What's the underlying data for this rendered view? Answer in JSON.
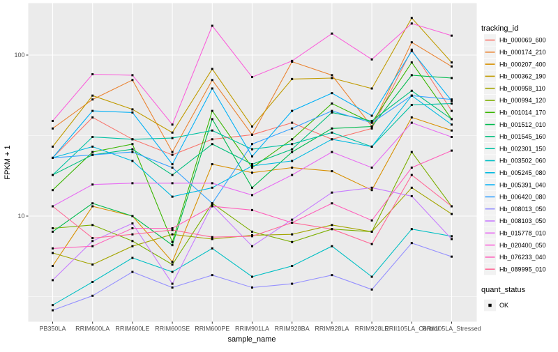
{
  "chart_data": {
    "type": "line",
    "title": "",
    "xlabel": "sample_name",
    "ylabel": "FPKM + 1",
    "y_scale": "log10",
    "ylim": [
      2.2,
      210
    ],
    "grid": true,
    "panel_bg": "#EBEBEB",
    "grid_color": "#FFFFFF",
    "axis_text_color": "#4D4D4D",
    "point_marker": {
      "shape": "square",
      "color": "#000000"
    },
    "yticks": [
      {
        "value": 10,
        "label": "10"
      },
      {
        "value": 100,
        "label": "100"
      }
    ],
    "y_minor": [
      3.162,
      31.62
    ],
    "categories": [
      "PB350LA",
      "RRIM600LA",
      "RRIM600LE",
      "RRIM600SE",
      "RRIM600PE",
      "RRIM901LA",
      "RRIM928BA",
      "RRIM928LA",
      "RRIM928LE",
      "RRII105LA_Control",
      "RRII105LA_Stressed"
    ],
    "legend": {
      "series_title": "tracking_id",
      "status_title": "quant_status",
      "status_items": [
        {
          "label": "OK",
          "marker": "black-square"
        }
      ],
      "key_bg": "#F2F2F2",
      "position": "right"
    },
    "series": [
      {
        "name": "Hb_000069_600",
        "color": "#F8766D",
        "quant_status": "OK",
        "values": [
          23,
          41,
          30,
          24,
          30,
          32,
          38,
          30,
          35,
          108,
          45
        ]
      },
      {
        "name": "Hb_000174_210",
        "color": "#EA8331",
        "quant_status": "OK",
        "values": [
          35,
          53,
          70,
          25,
          70,
          32,
          91,
          75,
          36,
          120,
          85
        ]
      },
      {
        "name": "Hb_000207_400",
        "color": "#D89000",
        "quant_status": "OK",
        "values": [
          4.9,
          11.5,
          10,
          5.2,
          21,
          18.6,
          20,
          19,
          14.5,
          41,
          34
        ]
      },
      {
        "name": "Hb_000362_190",
        "color": "#C09B00",
        "quant_status": "OK",
        "values": [
          27,
          56,
          46,
          33,
          82,
          36,
          71,
          72,
          62,
          170,
          90
        ]
      },
      {
        "name": "Hb_000958_110",
        "color": "#A3A500",
        "quant_status": "OK",
        "values": [
          5.9,
          5.0,
          6.5,
          7.7,
          7.2,
          7.6,
          7.7,
          8.8,
          8.0,
          15,
          10.3
        ]
      },
      {
        "name": "Hb_000994_120",
        "color": "#7CAE00",
        "quant_status": "OK",
        "values": [
          8.4,
          8.8,
          7.0,
          5.0,
          12,
          8.0,
          6.9,
          8.3,
          8.0,
          25,
          11.5
        ]
      },
      {
        "name": "Hb_001014_170",
        "color": "#39B600",
        "quant_status": "OK",
        "values": [
          14.5,
          25,
          28,
          6.9,
          45,
          20,
          30,
          50,
          38,
          90,
          40
        ]
      },
      {
        "name": "Hb_001512_010",
        "color": "#00BB4E",
        "quant_status": "OK",
        "values": [
          8.0,
          12,
          10,
          6.6,
          40,
          15,
          25,
          35,
          36,
          75,
          72
        ]
      },
      {
        "name": "Hb_001545_160",
        "color": "#00BF7D",
        "quant_status": "OK",
        "values": [
          18,
          24,
          26,
          18,
          28,
          21,
          26,
          44,
          39,
          60,
          40
        ]
      },
      {
        "name": "Hb_002301_150",
        "color": "#00C1A3",
        "quant_status": "OK",
        "values": [
          18,
          31,
          30,
          30.5,
          34,
          26,
          28,
          33,
          27,
          49,
          50
        ]
      },
      {
        "name": "Hb_003502_060",
        "color": "#00BFC4",
        "quant_status": "OK",
        "values": [
          2.8,
          3.9,
          5.5,
          4.5,
          6.3,
          4.2,
          4.9,
          6.5,
          4.2,
          8.3,
          7.5
        ]
      },
      {
        "name": "Hb_005245_080",
        "color": "#00BAE0",
        "quant_status": "OK",
        "values": [
          23,
          27,
          22,
          13.2,
          15,
          20.5,
          22,
          30,
          27,
          56,
          37
        ]
      },
      {
        "name": "Hb_005391_040",
        "color": "#00B0F6",
        "quant_status": "OK",
        "values": [
          23,
          45,
          44,
          21,
          62,
          23.5,
          45,
          58,
          42,
          106,
          52
        ]
      },
      {
        "name": "Hb_006420_080",
        "color": "#35A2FF",
        "quant_status": "OK",
        "values": [
          23,
          24,
          25,
          20,
          12,
          28,
          35,
          45,
          38,
          56,
          53
        ]
      },
      {
        "name": "Hb_008013_050",
        "color": "#9590FF",
        "quant_status": "OK",
        "values": [
          2.6,
          3.2,
          4.5,
          3.6,
          4.3,
          3.6,
          3.8,
          4.3,
          3.5,
          6.8,
          5.6
        ]
      },
      {
        "name": "Hb_008103_050",
        "color": "#C77CFF",
        "quant_status": "OK",
        "values": [
          4.0,
          7.0,
          9.0,
          3.8,
          11.7,
          6.5,
          9.5,
          14,
          15,
          13.3,
          7.2
        ]
      },
      {
        "name": "Hb_015778_010",
        "color": "#E76BF3",
        "quant_status": "OK",
        "values": [
          11.5,
          15.7,
          16,
          16,
          16,
          13.5,
          18,
          25,
          20,
          38,
          31
        ]
      },
      {
        "name": "Hb_020400_050",
        "color": "#FA62DB",
        "quant_status": "OK",
        "values": [
          39,
          76,
          75,
          37,
          152,
          73,
          92,
          136,
          94,
          157,
          132
        ]
      },
      {
        "name": "Hb_076233_040",
        "color": "#FF62BC",
        "quant_status": "OK",
        "values": [
          6.3,
          6.5,
          8.4,
          8.4,
          11.5,
          10.9,
          9.1,
          12,
          9.4,
          20,
          25.5
        ]
      },
      {
        "name": "Hb_089995_010",
        "color": "#FF6A98",
        "quant_status": "OK",
        "values": [
          11.5,
          7.3,
          7.7,
          8.2,
          7.4,
          7.5,
          9.1,
          8.3,
          6.7,
          18,
          11.5
        ]
      }
    ]
  }
}
